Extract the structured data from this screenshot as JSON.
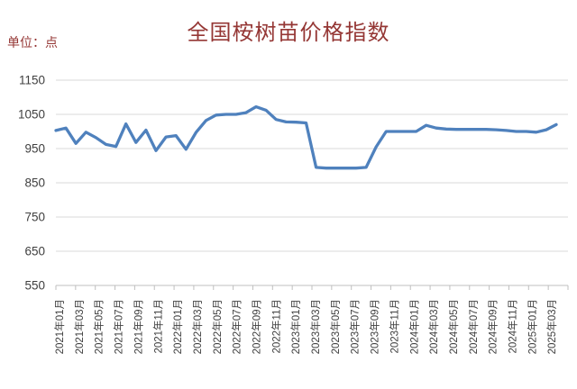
{
  "header": {
    "title": "全国桉树苗价格指数",
    "unit_label": "单位：点"
  },
  "colors": {
    "title_text": "#953735",
    "axis_text": "#404040",
    "gridline": "#D9D9D9",
    "axis_line": "#BFBFBF",
    "series_line": "#4F81BD"
  },
  "chart_data": {
    "type": "line",
    "title": "全国桉树苗价格指数",
    "unit": "点",
    "ylabel": "",
    "xlabel": "",
    "ylim": [
      550,
      1150
    ],
    "ytick_interval": 100,
    "ytick_labels": [
      "550",
      "650",
      "750",
      "850",
      "950",
      "1050",
      "1150"
    ],
    "grid": "horizontal",
    "legend": "none",
    "x": [
      "2021年01月",
      "2021年02月",
      "2021年03月",
      "2021年04月",
      "2021年05月",
      "2021年06月",
      "2021年07月",
      "2021年08月",
      "2021年09月",
      "2021年10月",
      "2021年11月",
      "2021年12月",
      "2022年01月",
      "2022年02月",
      "2022年03月",
      "2022年04月",
      "2022年05月",
      "2022年06月",
      "2022年07月",
      "2022年08月",
      "2022年09月",
      "2022年10月",
      "2022年11月",
      "2022年12月",
      "2023年01月",
      "2023年02月",
      "2023年03月",
      "2023年04月",
      "2023年05月",
      "2023年06月",
      "2023年07月",
      "2023年08月",
      "2023年09月",
      "2023年10月",
      "2023年11月",
      "2023年12月",
      "2024年01月",
      "2024年02月",
      "2024年03月",
      "2024年04月",
      "2024年05月",
      "2024年06月",
      "2024年07月",
      "2024年08月",
      "2024年09月",
      "2024年10月",
      "2024年11月",
      "2024年12月",
      "2025年01月",
      "2025年02月",
      "2025年03月"
    ],
    "values": [
      1003,
      1010,
      965,
      998,
      982,
      962,
      956,
      1022,
      968,
      1004,
      944,
      984,
      988,
      948,
      997,
      1032,
      1048,
      1050,
      1050,
      1055,
      1072,
      1062,
      1035,
      1028,
      1027,
      1025,
      895,
      893,
      893,
      893,
      893,
      895,
      955,
      1000,
      1000,
      1000,
      1000,
      1018,
      1010,
      1007,
      1006,
      1006,
      1006,
      1006,
      1005,
      1003,
      1000,
      1000,
      998,
      1005,
      1020
    ],
    "xtick_labels": [
      "2021年01月",
      "2021年03月",
      "2021年05月",
      "2021年07月",
      "2021年09月",
      "2021年11月",
      "2022年01月",
      "2022年03月",
      "2022年05月",
      "2022年07月",
      "2022年09月",
      "2022年11月",
      "2023年01月",
      "2023年03月",
      "2023年05月",
      "2023年07月",
      "2023年09月",
      "2023年11月",
      "2024年01月",
      "2024年03月",
      "2024年05月",
      "2024年07月",
      "2024年09月",
      "2024年11月",
      "2025年01月",
      "2025年03月"
    ]
  }
}
